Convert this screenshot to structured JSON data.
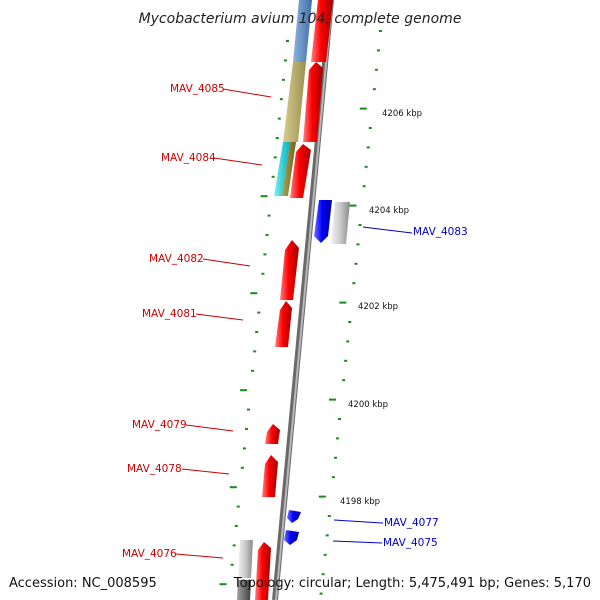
{
  "title": "Mycobacterium avium 104, complete genome",
  "footer": {
    "accession": "Accession: NC_008595",
    "summary": "Topology: circular; Length: 5,475,491 bp; Genes: 5,170"
  },
  "colors": {
    "forward_gene": "#ff0000",
    "reverse_gene": "#0000ff",
    "label_forward": "#cc0000",
    "label_reverse": "#0000cc",
    "tick": "#1a8a1a",
    "backbone": "#888888"
  },
  "chart_data": {
    "type": "genome-map",
    "position_ticks": [
      {
        "label": "4206 kbp"
      },
      {
        "label": "4204 kbp"
      },
      {
        "label": "4202 kbp"
      },
      {
        "label": "4200 kbp"
      },
      {
        "label": "4198 kbp"
      }
    ],
    "genes": [
      {
        "id": "MAV_4085",
        "strand": "+"
      },
      {
        "id": "MAV_4084",
        "strand": "+"
      },
      {
        "id": "MAV_4083",
        "strand": "-"
      },
      {
        "id": "MAV_4082",
        "strand": "+"
      },
      {
        "id": "MAV_4081",
        "strand": "+"
      },
      {
        "id": "MAV_4079",
        "strand": "+"
      },
      {
        "id": "MAV_4078",
        "strand": "+"
      },
      {
        "id": "MAV_4077",
        "strand": "-"
      },
      {
        "id": "MAV_4075",
        "strand": "-"
      },
      {
        "id": "MAV_4076",
        "strand": "+"
      }
    ]
  }
}
